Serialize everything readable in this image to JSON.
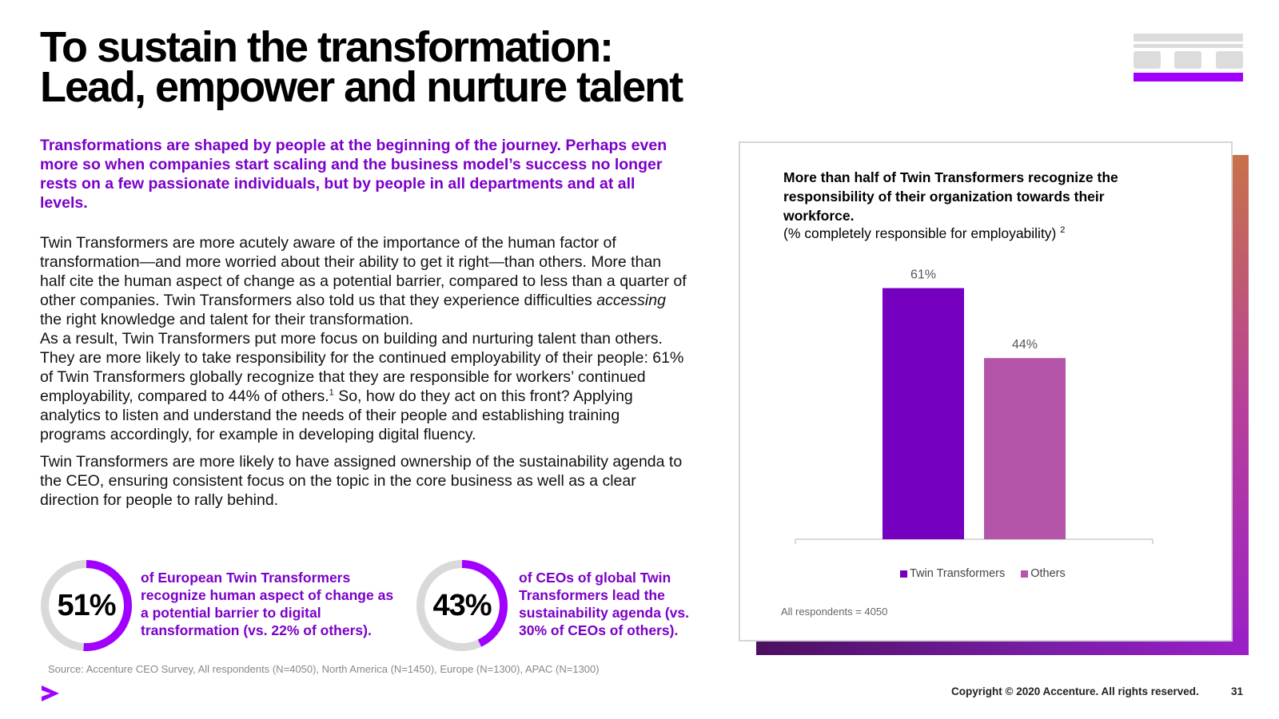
{
  "header": {
    "title_line1": "To sustain the transformation:",
    "title_line2": "Lead, empower and nurture talent"
  },
  "intro": "Transformations are shaped by people at the beginning of the journey. Perhaps even more so when companies start scaling and the business model’s success no longer rests on a few passionate individuals, but by people in all departments and at all levels.",
  "body": {
    "p1": "Twin Transformers are more acutely aware of the importance of the human factor of transformation—and more worried about their ability to get it right—than others. More than half cite the human aspect of change as a potential barrier, compared to less than a quarter of other companies. Twin Transformers also told us that they experience difficulties ",
    "p1_emph": "accessing",
    "p1_end": " the right knowledge and talent for their transformation.",
    "p2": "As a result, Twin Transformers put more focus on building and nurturing talent than others. They are more likely to take responsibility for the continued employability of their people: 61% of Twin Transformers globally recognize that they are responsible for workers’ continued employability, compared to 44% of others.",
    "p2_sup": "1",
    "p2_end": " So, how do they act on this front? Applying analytics to listen and understand the needs of their people and establishing training programs accordingly, for example in developing digital fluency.",
    "p3": "Twin Transformers are more likely to have assigned ownership of the sustainability agenda to the CEO, ensuring consistent focus on the topic in the core business as well as a clear direction for people to rally behind."
  },
  "stats": [
    {
      "label": "51%",
      "value": 51,
      "text": "of European Twin Transformers recognize human aspect of change as a potential barrier to digital transformation (vs. 22% of others)."
    },
    {
      "label": "43%",
      "value": 43,
      "text": "of CEOs of global Twin Transformers lead the sustainability agenda (vs. 30% of CEOs of others)."
    }
  ],
  "chart_card": {
    "title": "More than half of Twin Transformers recognize the responsibility of their organization towards their workforce.",
    "subtitle": "(% completely responsible for employability)",
    "subtitle_sup": "2",
    "note": "All respondents = 4050"
  },
  "chart_data": {
    "type": "bar",
    "categories": [
      "Twin Transformers",
      "Others"
    ],
    "values": [
      61,
      44
    ],
    "value_labels": [
      "61%",
      "44%"
    ],
    "colors": [
      "#7500c0",
      "#b455aa"
    ],
    "ylim": [
      0,
      65
    ],
    "legend": [
      "Twin Transformers",
      "Others"
    ],
    "legend_position": "bottom-center",
    "grid": false
  },
  "footer": {
    "source": "Source: Accenture CEO Survey, All respondents (N=4050), North America (N=1450), Europe (N=1300), APAC (N=1300)",
    "copyright": "Copyright © 2020 Accenture. All rights reserved.",
    "page": "31"
  },
  "colors": {
    "accent": "#a100ff",
    "purple_text": "#7b00c8",
    "donut_track": "#d9d9d9"
  }
}
